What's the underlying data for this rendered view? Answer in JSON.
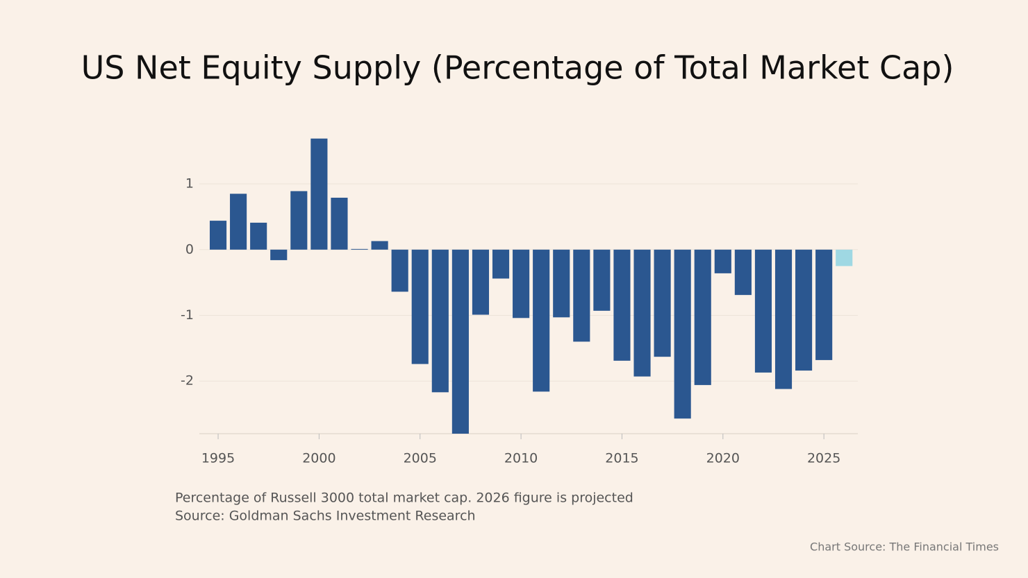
{
  "chart_data": {
    "type": "bar",
    "title": "US Net Equity Supply (Percentage of Total Market Cap)",
    "notes": [
      "Percentage of Russell 3000 total market cap. 2026 figure is projected",
      "Source: Goldman Sachs Investment Research"
    ],
    "credit": "Chart Source: The Financial Times",
    "x": [
      1995,
      1996,
      1997,
      1998,
      1999,
      2000,
      2001,
      2002,
      2003,
      2004,
      2005,
      2006,
      2007,
      2008,
      2009,
      2010,
      2011,
      2012,
      2013,
      2014,
      2015,
      2016,
      2017,
      2018,
      2019,
      2020,
      2021,
      2022,
      2023,
      2024,
      2025,
      2026
    ],
    "values": [
      0.44,
      0.85,
      0.41,
      -0.16,
      0.89,
      1.69,
      0.79,
      0.01,
      0.13,
      -0.64,
      -1.74,
      -2.17,
      -2.8,
      -0.99,
      -0.44,
      -1.04,
      -2.16,
      -1.03,
      -1.4,
      -0.93,
      -1.69,
      -1.93,
      -1.63,
      -2.57,
      -2.06,
      -0.36,
      -0.69,
      -1.87,
      -2.12,
      -1.84,
      -1.68,
      -0.25
    ],
    "colors": [
      "#2b5790",
      "#2b5790",
      "#2b5790",
      "#2b5790",
      "#2b5790",
      "#2b5790",
      "#2b5790",
      "#2b5790",
      "#2b5790",
      "#2b5790",
      "#2b5790",
      "#2b5790",
      "#2b5790",
      "#2b5790",
      "#2b5790",
      "#2b5790",
      "#2b5790",
      "#2b5790",
      "#2b5790",
      "#2b5790",
      "#2b5790",
      "#2b5790",
      "#2b5790",
      "#2b5790",
      "#2b5790",
      "#2b5790",
      "#2b5790",
      "#2b5790",
      "#2b5790",
      "#2b5790",
      "#2b5790",
      "#9fd8e3"
    ],
    "xlim": [
      1994.07,
      2026.68
    ],
    "xticks": [
      1995,
      2000,
      2005,
      2010,
      2015,
      2020,
      2025
    ],
    "ylim": [
      -2.8,
      1.75
    ],
    "yticks": [
      1,
      0,
      -1,
      -2
    ],
    "grid": true
  }
}
